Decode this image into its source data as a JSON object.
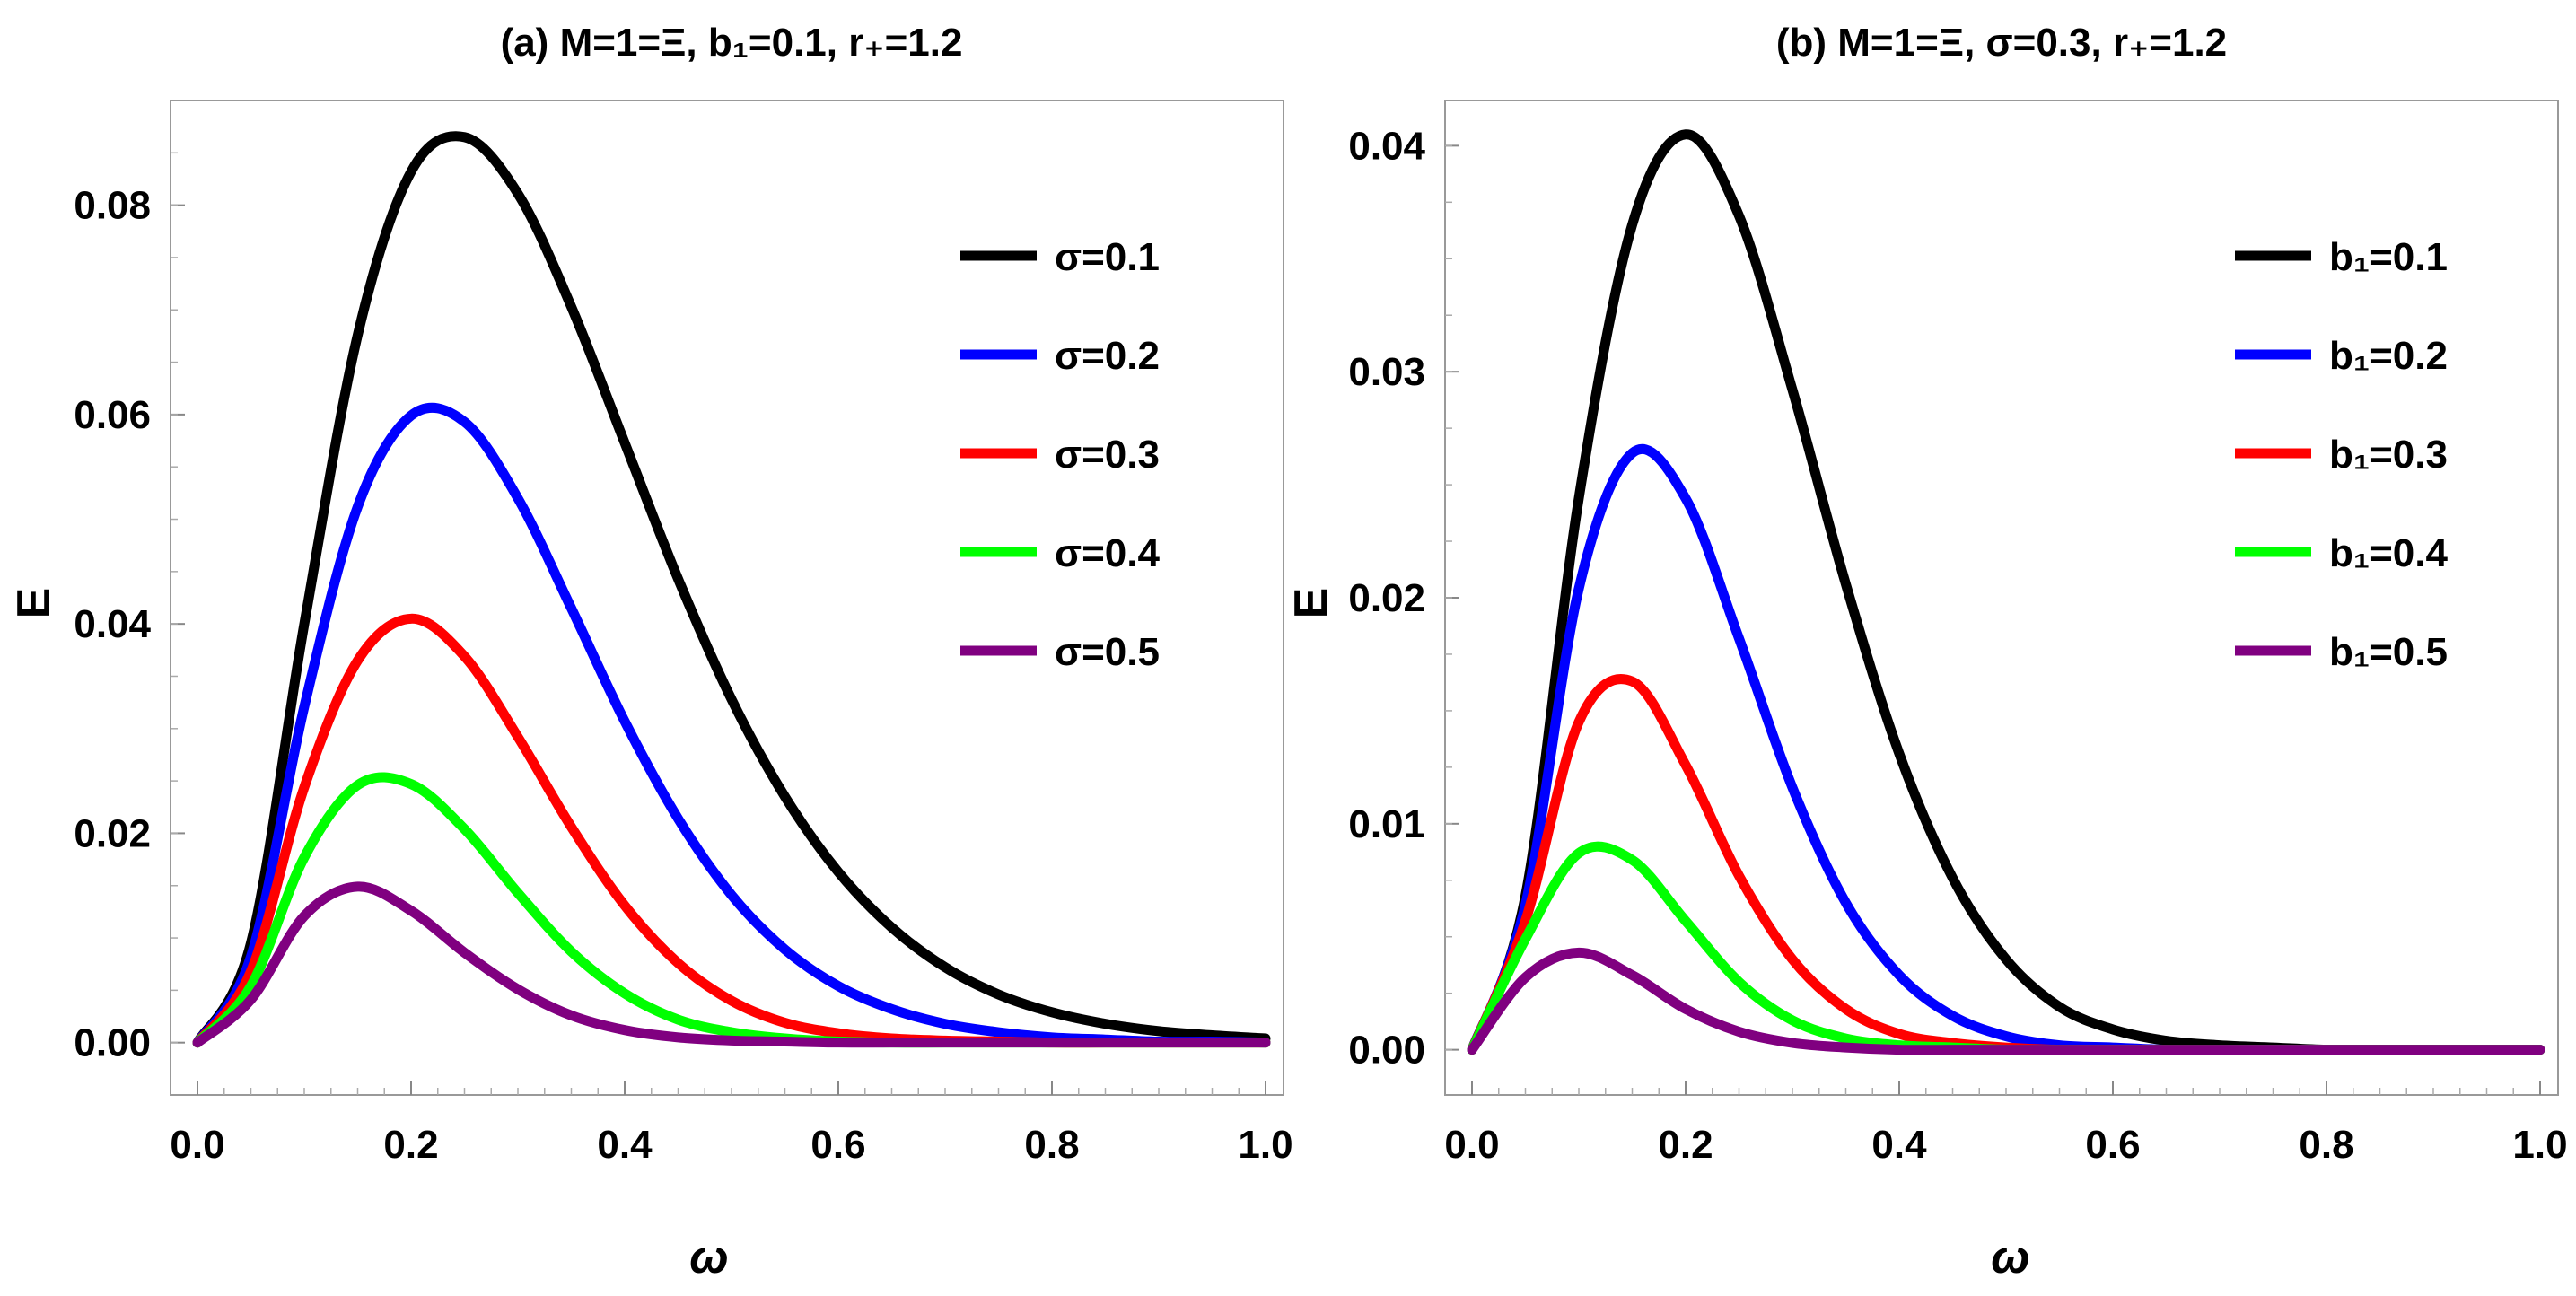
{
  "chart_data": [
    {
      "type": "line",
      "panel": "a",
      "title": "(a) M=1=Ξ, b₁=0.1, r₊=1.2",
      "xlabel": "ω",
      "ylabel": "E",
      "xlim": [
        0.0,
        1.0
      ],
      "ylim": [
        -0.005,
        0.09
      ],
      "xticks": [
        0.0,
        0.2,
        0.4,
        0.6,
        0.8,
        1.0
      ],
      "xtick_labels": [
        "0.0",
        "0.2",
        "0.4",
        "0.6",
        "0.8",
        "1.0"
      ],
      "yticks": [
        0.0,
        0.02,
        0.04,
        0.06,
        0.08
      ],
      "ytick_labels": [
        "0.00",
        "0.02",
        "0.04",
        "0.06",
        "0.08"
      ],
      "legend_position": "top-right",
      "grid": false,
      "series": [
        {
          "name": "σ=0.1",
          "color": "#000000",
          "x": [
            0.0,
            0.05,
            0.1,
            0.15,
            0.2,
            0.25,
            0.3,
            0.35,
            0.4,
            0.45,
            0.5,
            0.55,
            0.6,
            0.65,
            0.7,
            0.75,
            0.8,
            0.85,
            0.9,
            0.95,
            1.0
          ],
          "y": [
            0.0,
            0.0095,
            0.04,
            0.0676,
            0.0832,
            0.0865,
            0.0811,
            0.0703,
            0.0573,
            0.0443,
            0.0328,
            0.0235,
            0.0163,
            0.011,
            0.0072,
            0.0046,
            0.0029,
            0.0018,
            0.0011,
            0.0007,
            0.0004
          ]
        },
        {
          "name": "σ=0.2",
          "color": "#0000ff",
          "x": [
            0.0,
            0.05,
            0.1,
            0.15,
            0.2,
            0.25,
            0.3,
            0.35,
            0.4,
            0.45,
            0.5,
            0.55,
            0.6,
            0.65,
            0.7,
            0.75,
            0.8,
            0.85,
            0.9,
            0.95,
            1.0
          ],
          "y": [
            0.0,
            0.0082,
            0.0321,
            0.0512,
            0.0599,
            0.0593,
            0.052,
            0.0415,
            0.0307,
            0.0214,
            0.0141,
            0.0089,
            0.0054,
            0.0032,
            0.0018,
            0.001,
            0.0005,
            0.0003,
            0.0001,
            0.0001,
            0.0
          ]
        },
        {
          "name": "σ=0.3",
          "color": "#ff0000",
          "x": [
            0.0,
            0.05,
            0.1,
            0.15,
            0.2,
            0.25,
            0.3,
            0.35,
            0.4,
            0.45,
            0.5,
            0.55,
            0.6,
            0.65,
            0.7,
            0.75,
            0.8,
            0.85,
            0.9,
            0.95,
            1.0
          ],
          "y": [
            0.0,
            0.0068,
            0.0244,
            0.0365,
            0.0405,
            0.0369,
            0.0292,
            0.0206,
            0.0131,
            0.0076,
            0.004,
            0.0019,
            0.0009,
            0.0004,
            0.0002,
            0.0001,
            0.0,
            0.0,
            0.0,
            0.0,
            0.0
          ]
        },
        {
          "name": "σ=0.4",
          "color": "#00ff00",
          "x": [
            0.0,
            0.05,
            0.1,
            0.15,
            0.2,
            0.25,
            0.3,
            0.35,
            0.4,
            0.45,
            0.5,
            0.55,
            0.6,
            0.65,
            0.7,
            0.75,
            0.8,
            0.85,
            0.9,
            0.95,
            1.0
          ],
          "y": [
            0.0,
            0.0054,
            0.0177,
            0.0246,
            0.0247,
            0.0204,
            0.0143,
            0.0087,
            0.0047,
            0.0022,
            0.001,
            0.0004,
            0.0001,
            0.0,
            0.0,
            0.0,
            0.0,
            0.0,
            0.0,
            0.0,
            0.0
          ]
        },
        {
          "name": "σ=0.5",
          "color": "#800080",
          "x": [
            0.0,
            0.05,
            0.1,
            0.15,
            0.2,
            0.25,
            0.3,
            0.35,
            0.4,
            0.45,
            0.5,
            0.55,
            0.6,
            0.65,
            0.7,
            0.75,
            0.8,
            0.85,
            0.9,
            0.95,
            1.0
          ],
          "y": [
            0.0,
            0.0041,
            0.0121,
            0.0149,
            0.0126,
            0.0086,
            0.0051,
            0.0026,
            0.0012,
            0.0005,
            0.0002,
            0.0001,
            0.0,
            0.0,
            0.0,
            0.0,
            0.0,
            0.0,
            0.0,
            0.0,
            0.0
          ]
        }
      ]
    },
    {
      "type": "line",
      "panel": "b",
      "title": "(b) M=1=Ξ, σ=0.3, r₊=1.2",
      "xlabel": "ω",
      "ylabel": "E",
      "xlim": [
        0.0,
        1.0
      ],
      "ylim": [
        -0.002,
        0.042
      ],
      "xticks": [
        0.0,
        0.2,
        0.4,
        0.6,
        0.8,
        1.0
      ],
      "xtick_labels": [
        "0.0",
        "0.2",
        "0.4",
        "0.6",
        "0.8",
        "1.0"
      ],
      "yticks": [
        0.0,
        0.01,
        0.02,
        0.03,
        0.04
      ],
      "ytick_labels": [
        "0.00",
        "0.01",
        "0.02",
        "0.03",
        "0.04"
      ],
      "legend_position": "top-right",
      "grid": false,
      "series": [
        {
          "name": "b₁=0.1",
          "color": "#000000",
          "x": [
            0.0,
            0.05,
            0.1,
            0.15,
            0.2,
            0.25,
            0.3,
            0.35,
            0.4,
            0.45,
            0.5,
            0.55,
            0.6,
            0.65,
            0.7,
            0.75,
            0.8,
            0.85,
            0.9,
            0.95,
            1.0
          ],
          "y": [
            0.0,
            0.0068,
            0.0244,
            0.0365,
            0.0405,
            0.0369,
            0.0292,
            0.0206,
            0.0131,
            0.0076,
            0.004,
            0.0019,
            0.0009,
            0.0004,
            0.0002,
            0.0001,
            0.0,
            0.0,
            0.0,
            0.0,
            0.0
          ]
        },
        {
          "name": "b₁=0.2",
          "color": "#0000ff",
          "x": [
            0.0,
            0.05,
            0.1,
            0.15,
            0.2,
            0.25,
            0.3,
            0.35,
            0.4,
            0.45,
            0.5,
            0.55,
            0.6,
            0.65,
            0.7,
            0.75,
            0.8,
            0.85,
            0.9,
            0.95,
            1.0
          ],
          "y": [
            0.0,
            0.0064,
            0.0204,
            0.0264,
            0.0244,
            0.0182,
            0.0116,
            0.0065,
            0.0033,
            0.0015,
            0.0006,
            0.0002,
            0.0001,
            0.0,
            0.0,
            0.0,
            0.0,
            0.0,
            0.0,
            0.0,
            0.0
          ]
        },
        {
          "name": "b₁=0.3",
          "color": "#ff0000",
          "x": [
            0.0,
            0.05,
            0.1,
            0.15,
            0.2,
            0.25,
            0.3,
            0.35,
            0.4,
            0.45,
            0.5,
            0.55,
            0.6,
            0.65,
            0.7,
            0.75,
            0.8,
            0.85,
            0.9,
            0.95,
            1.0
          ],
          "y": [
            0.0,
            0.0057,
            0.0145,
            0.0163,
            0.0126,
            0.0077,
            0.004,
            0.0018,
            0.0007,
            0.0003,
            0.0001,
            0.0,
            0.0,
            0.0,
            0.0,
            0.0,
            0.0,
            0.0,
            0.0,
            0.0,
            0.0
          ]
        },
        {
          "name": "b₁=0.4",
          "color": "#00ff00",
          "x": [
            0.0,
            0.05,
            0.1,
            0.15,
            0.2,
            0.25,
            0.3,
            0.35,
            0.4,
            0.45,
            0.5,
            0.55,
            0.6,
            0.65,
            0.7,
            0.75,
            0.8,
            0.85,
            0.9,
            0.95,
            1.0
          ],
          "y": [
            0.0,
            0.0049,
            0.0087,
            0.0084,
            0.0057,
            0.003,
            0.0013,
            0.0005,
            0.0002,
            0.0001,
            0.0,
            0.0,
            0.0,
            0.0,
            0.0,
            0.0,
            0.0,
            0.0,
            0.0,
            0.0,
            0.0
          ]
        },
        {
          "name": "b₁=0.5",
          "color": "#800080",
          "x": [
            0.0,
            0.05,
            0.1,
            0.15,
            0.2,
            0.25,
            0.3,
            0.35,
            0.4,
            0.45,
            0.5,
            0.55,
            0.6,
            0.65,
            0.7,
            0.75,
            0.8,
            0.85,
            0.9,
            0.95,
            1.0
          ],
          "y": [
            0.0,
            0.0032,
            0.0043,
            0.0033,
            0.0018,
            0.0008,
            0.0003,
            0.0001,
            0.0,
            0.0,
            0.0,
            0.0,
            0.0,
            0.0,
            0.0,
            0.0,
            0.0,
            0.0,
            0.0,
            0.0,
            0.0
          ]
        }
      ]
    }
  ]
}
